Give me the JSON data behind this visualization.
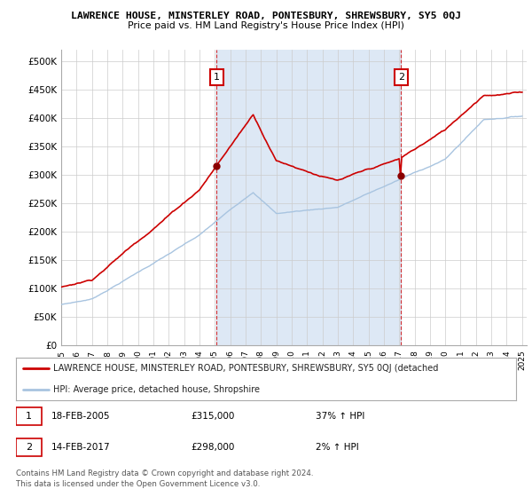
{
  "title": "LAWRENCE HOUSE, MINSTERLEY ROAD, PONTESBURY, SHREWSBURY, SY5 0QJ",
  "subtitle": "Price paid vs. HM Land Registry's House Price Index (HPI)",
  "ylabel_ticks": [
    "£0",
    "£50K",
    "£100K",
    "£150K",
    "£200K",
    "£250K",
    "£300K",
    "£350K",
    "£400K",
    "£450K",
    "£500K"
  ],
  "ytick_values": [
    0,
    50000,
    100000,
    150000,
    200000,
    250000,
    300000,
    350000,
    400000,
    450000,
    500000
  ],
  "ylim": [
    0,
    520000
  ],
  "x_start_year": 1995,
  "x_end_year": 2025,
  "hpi_color": "#a8c4e0",
  "price_color": "#cc0000",
  "marker1_year": 2005.12,
  "marker1_value": 315000,
  "marker2_year": 2017.12,
  "marker2_value": 298000,
  "vline1_year": 2005.12,
  "vline2_year": 2017.12,
  "shade_color": "#dde8f5",
  "legend_label_red": "LAWRENCE HOUSE, MINSTERLEY ROAD, PONTESBURY, SHREWSBURY, SY5 0QJ (detached",
  "legend_label_blue": "HPI: Average price, detached house, Shropshire",
  "annotation1_label": "1",
  "annotation2_label": "2",
  "table_row1": [
    "1",
    "18-FEB-2005",
    "£315,000",
    "37% ↑ HPI"
  ],
  "table_row2": [
    "2",
    "14-FEB-2017",
    "£298,000",
    "2% ↑ HPI"
  ],
  "footer": "Contains HM Land Registry data © Crown copyright and database right 2024.\nThis data is licensed under the Open Government Licence v3.0.",
  "background_color": "#ffffff",
  "grid_color": "#cccccc"
}
